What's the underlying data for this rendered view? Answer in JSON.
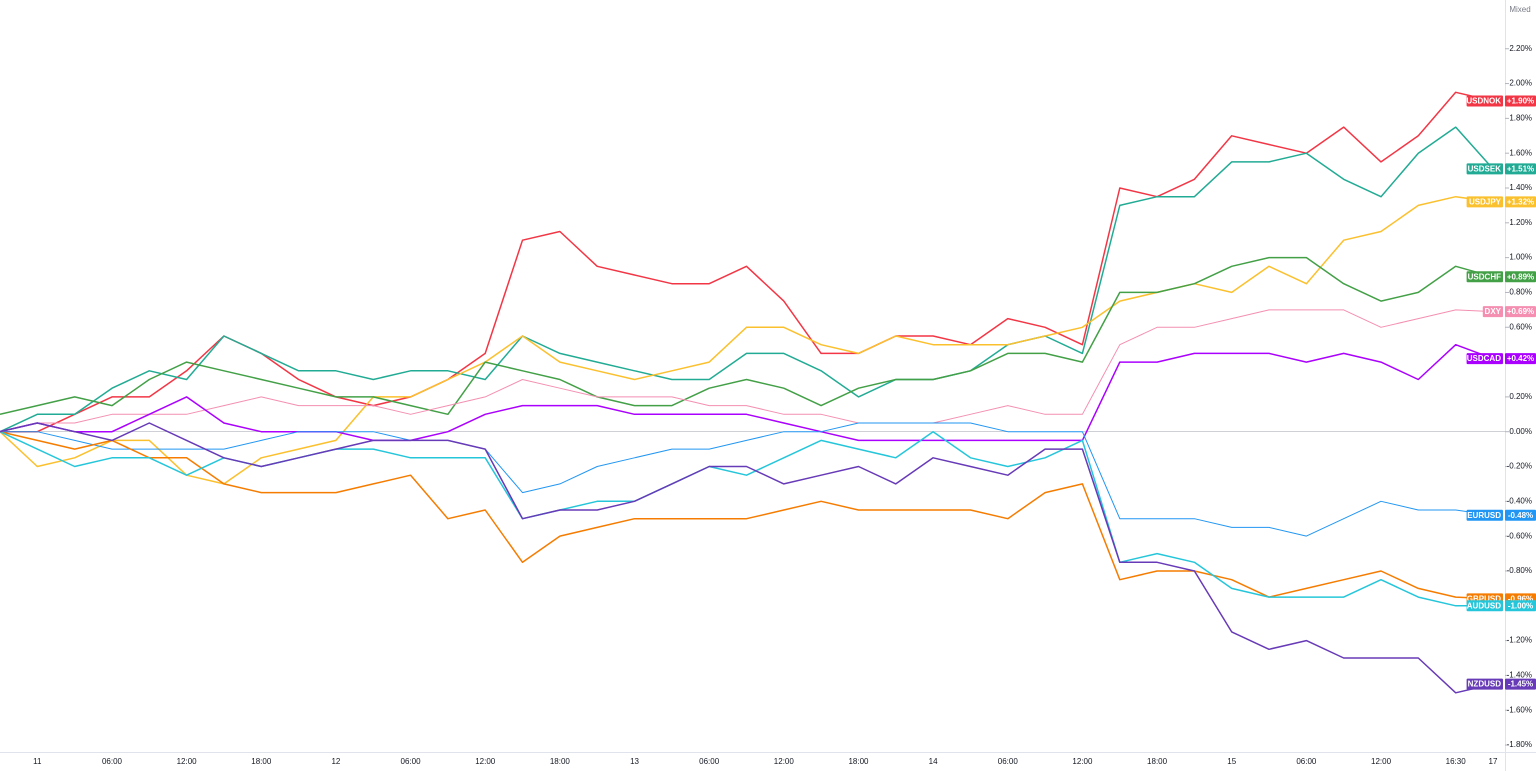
{
  "chart_data": {
    "type": "line",
    "scale_mode": "Mixed",
    "categories": [
      null,
      "11",
      null,
      "06:00",
      null,
      "12:00",
      null,
      "18:00",
      null,
      "12",
      null,
      "06:00",
      null,
      "12:00",
      null,
      "18:00",
      null,
      "13",
      null,
      "06:00",
      null,
      "12:00",
      null,
      "18:00",
      null,
      "14",
      null,
      "06:00",
      null,
      "12:00",
      null,
      "18:00",
      null,
      "15",
      null,
      "06:00",
      null,
      "12:00",
      null,
      "16:30",
      "17"
    ],
    "ylim": [
      -1.84,
      2.48
    ],
    "yticks": [
      {
        "value": -1.8,
        "label": "-1.80%"
      },
      {
        "value": -1.6,
        "label": "-1.60%"
      },
      {
        "value": -1.4,
        "label": "-1.40%"
      },
      {
        "value": -1.2,
        "label": "-1.20%"
      },
      {
        "value": -1.0,
        "label": "-1.00%"
      },
      {
        "value": -0.8,
        "label": "-0.80%"
      },
      {
        "value": -0.6,
        "label": "-0.60%"
      },
      {
        "value": -0.4,
        "label": "-0.40%"
      },
      {
        "value": -0.2,
        "label": "-0.20%"
      },
      {
        "value": 0,
        "label": "0.00%"
      },
      {
        "value": 0.2,
        "label": "0.20%"
      },
      {
        "value": 0.4,
        "label": "0.40%"
      },
      {
        "value": 0.6,
        "label": "0.60%"
      },
      {
        "value": 0.8,
        "label": "0.80%"
      },
      {
        "value": 1.0,
        "label": "1.00%"
      },
      {
        "value": 1.2,
        "label": "1.20%"
      },
      {
        "value": 1.4,
        "label": "1.40%"
      },
      {
        "value": 1.6,
        "label": "1.60%"
      },
      {
        "value": 1.8,
        "label": "1.80%"
      },
      {
        "value": 2.0,
        "label": "2.00%"
      },
      {
        "value": 2.2,
        "label": "2.20%"
      }
    ],
    "grid": false,
    "series": [
      {
        "name": "USDNOK",
        "color": "#f23645",
        "value_label": "+1.90%",
        "values": [
          0,
          0,
          0.1,
          0.2,
          0.2,
          0.35,
          0.55,
          0.45,
          0.3,
          0.2,
          0.15,
          0.2,
          0.3,
          0.45,
          1.1,
          1.15,
          0.95,
          0.9,
          0.85,
          0.85,
          0.95,
          0.75,
          0.45,
          0.45,
          0.55,
          0.55,
          0.5,
          0.65,
          0.6,
          0.5,
          1.4,
          1.35,
          1.45,
          1.7,
          1.65,
          1.6,
          1.75,
          1.55,
          1.7,
          1.95,
          1.9
        ]
      },
      {
        "name": "USDSEK",
        "color": "#22ab94",
        "value_label": "+1.51%",
        "values": [
          0,
          0.1,
          0.1,
          0.25,
          0.35,
          0.3,
          0.55,
          0.45,
          0.35,
          0.35,
          0.3,
          0.35,
          0.35,
          0.3,
          0.55,
          0.45,
          0.4,
          0.35,
          0.3,
          0.3,
          0.45,
          0.45,
          0.35,
          0.2,
          0.3,
          0.3,
          0.35,
          0.5,
          0.55,
          0.45,
          1.3,
          1.35,
          1.35,
          1.55,
          1.55,
          1.6,
          1.45,
          1.35,
          1.6,
          1.75,
          1.51
        ]
      },
      {
        "name": "USDJPY",
        "color": "#fbc02d",
        "value_label": "+1.32%",
        "values": [
          0,
          -0.2,
          -0.15,
          -0.05,
          -0.05,
          -0.25,
          -0.3,
          -0.15,
          -0.1,
          -0.05,
          0.2,
          0.2,
          0.3,
          0.4,
          0.55,
          0.4,
          0.35,
          0.3,
          0.35,
          0.4,
          0.6,
          0.6,
          0.5,
          0.45,
          0.55,
          0.5,
          0.5,
          0.5,
          0.55,
          0.6,
          0.75,
          0.8,
          0.85,
          0.8,
          0.95,
          0.85,
          1.1,
          1.15,
          1.3,
          1.35,
          1.32
        ]
      },
      {
        "name": "USDCHF",
        "color": "#43a047",
        "value_label": "+0.89%",
        "values": [
          0.1,
          0.15,
          0.2,
          0.15,
          0.3,
          0.4,
          0.35,
          0.3,
          0.25,
          0.2,
          0.2,
          0.15,
          0.1,
          0.4,
          0.35,
          0.3,
          0.2,
          0.15,
          0.15,
          0.25,
          0.3,
          0.25,
          0.15,
          0.25,
          0.3,
          0.3,
          0.35,
          0.45,
          0.45,
          0.4,
          0.8,
          0.8,
          0.85,
          0.95,
          1.0,
          1.0,
          0.85,
          0.75,
          0.8,
          0.95,
          0.89
        ]
      },
      {
        "name": "DXY",
        "color": "#f48fb1",
        "value_label": "+0.69%",
        "values": [
          0,
          0.05,
          0.05,
          0.1,
          0.1,
          0.1,
          0.15,
          0.2,
          0.15,
          0.15,
          0.15,
          0.1,
          0.15,
          0.2,
          0.3,
          0.25,
          0.2,
          0.2,
          0.2,
          0.15,
          0.15,
          0.1,
          0.1,
          0.05,
          0.05,
          0.05,
          0.1,
          0.15,
          0.1,
          0.1,
          0.5,
          0.6,
          0.6,
          0.65,
          0.7,
          0.7,
          0.7,
          0.6,
          0.65,
          0.7,
          0.69
        ]
      },
      {
        "name": "USDCAD",
        "color": "#aa00ff",
        "value_label": "+0.42%",
        "values": [
          0,
          0.05,
          0,
          0,
          0.1,
          0.2,
          0.05,
          0,
          0,
          0,
          -0.05,
          -0.05,
          0,
          0.1,
          0.15,
          0.15,
          0.15,
          0.1,
          0.1,
          0.1,
          0.1,
          0.05,
          0,
          -0.05,
          -0.05,
          -0.05,
          -0.05,
          -0.05,
          -0.05,
          -0.05,
          0.4,
          0.4,
          0.45,
          0.45,
          0.45,
          0.4,
          0.45,
          0.4,
          0.3,
          0.5,
          0.42
        ]
      },
      {
        "name": "EURUSD",
        "color": "#2196f3",
        "value_label": "-0.48%",
        "values": [
          0,
          0,
          -0.05,
          -0.1,
          -0.1,
          -0.1,
          -0.1,
          -0.05,
          0,
          0,
          0,
          -0.05,
          -0.05,
          -0.1,
          -0.35,
          -0.3,
          -0.2,
          -0.15,
          -0.1,
          -0.1,
          -0.05,
          0,
          0,
          0.05,
          0.05,
          0.05,
          0.05,
          0,
          0,
          0,
          -0.5,
          -0.5,
          -0.5,
          -0.55,
          -0.55,
          -0.6,
          -0.5,
          -0.4,
          -0.45,
          -0.45,
          -0.48
        ]
      },
      {
        "name": "GBPUSD",
        "color": "#f57c00",
        "value_label": "-0.96%",
        "values": [
          0,
          -0.05,
          -0.1,
          -0.05,
          -0.15,
          -0.15,
          -0.3,
          -0.35,
          -0.35,
          -0.35,
          -0.3,
          -0.25,
          -0.5,
          -0.45,
          -0.75,
          -0.6,
          -0.55,
          -0.5,
          -0.5,
          -0.5,
          -0.5,
          -0.45,
          -0.4,
          -0.45,
          -0.45,
          -0.45,
          -0.45,
          -0.5,
          -0.35,
          -0.3,
          -0.85,
          -0.8,
          -0.8,
          -0.85,
          -0.95,
          -0.9,
          -0.85,
          -0.8,
          -0.9,
          -0.95,
          -0.96
        ]
      },
      {
        "name": "AUDUSD",
        "color": "#26c6da",
        "value_label": "-1.00%",
        "values": [
          0,
          -0.1,
          -0.2,
          -0.15,
          -0.15,
          -0.25,
          -0.15,
          -0.2,
          -0.15,
          -0.1,
          -0.1,
          -0.15,
          -0.15,
          -0.15,
          -0.5,
          -0.45,
          -0.4,
          -0.4,
          -0.3,
          -0.2,
          -0.25,
          -0.15,
          -0.05,
          -0.1,
          -0.15,
          0,
          -0.15,
          -0.2,
          -0.15,
          -0.05,
          -0.75,
          -0.7,
          -0.75,
          -0.9,
          -0.95,
          -0.95,
          -0.95,
          -0.85,
          -0.95,
          -1.0,
          -1.0
        ]
      },
      {
        "name": "NZDUSD",
        "color": "#673ab7",
        "value_label": "-1.45%",
        "values": [
          0,
          0.05,
          0,
          -0.05,
          0.05,
          -0.05,
          -0.15,
          -0.2,
          -0.15,
          -0.1,
          -0.05,
          -0.05,
          -0.05,
          -0.1,
          -0.5,
          -0.45,
          -0.45,
          -0.4,
          -0.3,
          -0.2,
          -0.2,
          -0.3,
          -0.25,
          -0.2,
          -0.3,
          -0.15,
          -0.2,
          -0.25,
          -0.1,
          -0.1,
          -0.75,
          -0.75,
          -0.8,
          -1.15,
          -1.25,
          -1.2,
          -1.3,
          -1.3,
          -1.3,
          -1.5,
          -1.45
        ]
      }
    ]
  }
}
